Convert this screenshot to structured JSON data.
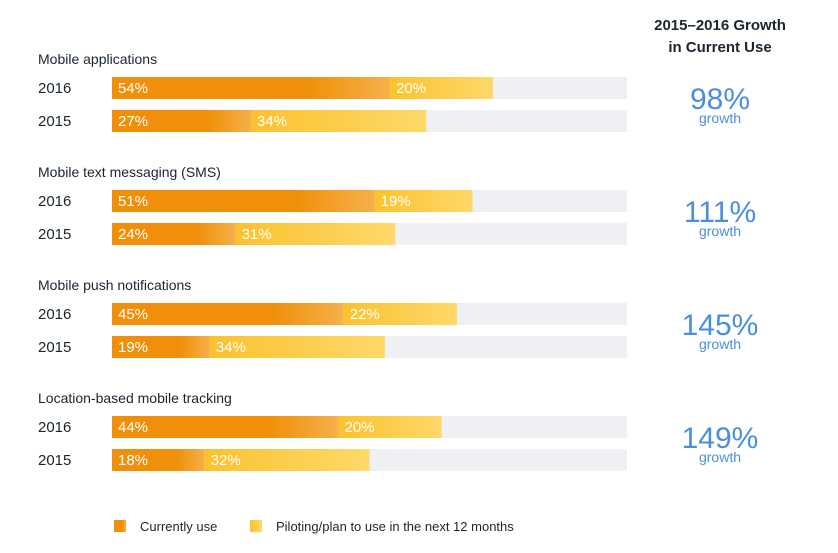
{
  "chart_data": {
    "type": "bar",
    "orientation": "horizontal",
    "stacked": true,
    "xlim": [
      0,
      100
    ],
    "grid": false,
    "legend_position": "bottom",
    "colors": {
      "current": "#f0900a",
      "current_light": "#f5b14a",
      "piloting": "#fbc22e",
      "piloting_light": "#fdd96a",
      "track": "#eef0f3",
      "accent": "#4a90d9"
    },
    "growth_header": [
      "2015–2016 Growth",
      "in Current Use"
    ],
    "groups": [
      {
        "title": "Mobile applications",
        "rows": [
          {
            "year": "2016",
            "current": 54,
            "piloting": 20
          },
          {
            "year": "2015",
            "current": 27,
            "piloting": 34
          }
        ],
        "growth": "98%",
        "growth_label": "growth"
      },
      {
        "title": "Mobile text messaging (SMS)",
        "rows": [
          {
            "year": "2016",
            "current": 51,
            "piloting": 19
          },
          {
            "year": "2015",
            "current": 24,
            "piloting": 31
          }
        ],
        "growth": "111%",
        "growth_label": "growth"
      },
      {
        "title": "Mobile push notifications",
        "rows": [
          {
            "year": "2016",
            "current": 45,
            "piloting": 22
          },
          {
            "year": "2015",
            "current": 19,
            "piloting": 34
          }
        ],
        "growth": "145%",
        "growth_label": "growth"
      },
      {
        "title": "Location-based mobile tracking",
        "rows": [
          {
            "year": "2016",
            "current": 44,
            "piloting": 20
          },
          {
            "year": "2015",
            "current": 18,
            "piloting": 32
          }
        ],
        "growth": "149%",
        "growth_label": "growth"
      }
    ],
    "legend": [
      {
        "key": "current",
        "label": "Currently use"
      },
      {
        "key": "piloting",
        "label": "Piloting/plan to use in the next 12 months"
      }
    ]
  }
}
